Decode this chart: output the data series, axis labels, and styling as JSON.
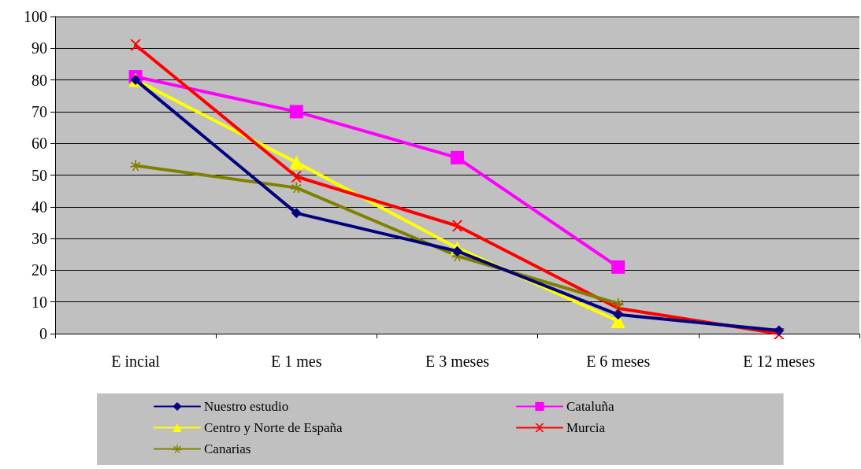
{
  "chart_data": {
    "type": "line",
    "categories": [
      "E incial",
      "E 1 mes",
      "E 3 meses",
      "E 6 meses",
      "E 12 meses"
    ],
    "series": [
      {
        "name": "Nuestro estudio",
        "color": "#000080",
        "marker": "diamond",
        "values": [
          80,
          38,
          26,
          6,
          1
        ]
      },
      {
        "name": "Cataluña",
        "color": "#ff00ff",
        "marker": "square",
        "values": [
          81,
          70,
          55.5,
          21,
          null
        ]
      },
      {
        "name": "Centro y Norte de España",
        "color": "#ffff00",
        "marker": "triangle",
        "values": [
          80,
          54,
          27,
          4,
          null
        ]
      },
      {
        "name": "Murcia",
        "color": "#ff0000",
        "marker": "cross",
        "values": [
          91,
          49.5,
          34,
          8,
          0
        ]
      },
      {
        "name": "Canarias",
        "color": "#808000",
        "marker": "star",
        "values": [
          53,
          46,
          24.5,
          9.5,
          null
        ]
      }
    ],
    "ylim": [
      0,
      100
    ],
    "yticks": [
      0,
      10,
      20,
      30,
      40,
      50,
      60,
      70,
      80,
      90,
      100
    ],
    "grid": "y",
    "legend": "bottom",
    "line_style": "solid"
  }
}
